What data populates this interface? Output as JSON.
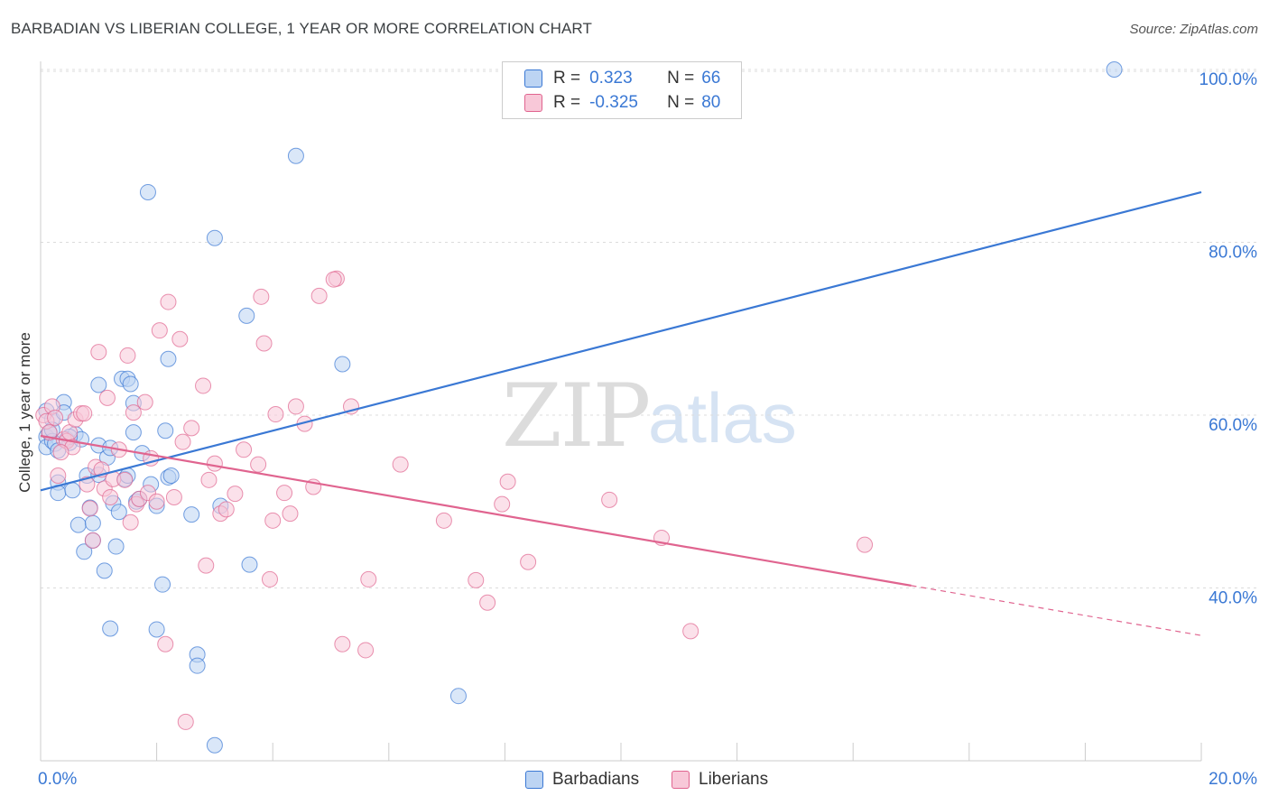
{
  "title": "BARBADIAN VS LIBERIAN COLLEGE, 1 YEAR OR MORE CORRELATION CHART",
  "source": "Source: ZipAtlas.com",
  "watermark": {
    "zip": "ZIP",
    "atlas": "atlas"
  },
  "stats": [
    {
      "r_label": "R =",
      "r_value": "0.323",
      "n_label": "N =",
      "n_value": "66",
      "color": "#3a78d4",
      "fill": "#bcd4f3"
    },
    {
      "r_label": "R =",
      "r_value": "-0.325",
      "n_label": "N =",
      "n_value": "80",
      "color": "#e0648f",
      "fill": "#f8c8d8"
    }
  ],
  "legend": [
    {
      "label": "Barbadians",
      "color": "#3a78d4",
      "fill": "#bcd4f3"
    },
    {
      "label": "Liberians",
      "color": "#e0648f",
      "fill": "#f8c8d8"
    }
  ],
  "chart_data": {
    "type": "scatter",
    "xlabel": "",
    "ylabel": "College, 1 year or more",
    "xlim": [
      0,
      20
    ],
    "ylim": [
      20,
      102
    ],
    "x_tick_labels": [
      "0.0%",
      "20.0%"
    ],
    "y_ticks": [
      40,
      60,
      80,
      100
    ],
    "y_tick_labels": [
      "40.0%",
      "60.0%",
      "80.0%",
      "100.0%"
    ],
    "grid": true,
    "series": [
      {
        "name": "Barbadians",
        "color": "#3a78d4",
        "fill": "#bcd4f3",
        "trend": {
          "x0": 0,
          "y0": 51.3,
          "x1": 20,
          "y1": 85.8,
          "dashed_from": null
        },
        "points": [
          [
            0.1,
            60.5
          ],
          [
            0.1,
            57.5
          ],
          [
            0.1,
            56.3
          ],
          [
            0.15,
            58.0
          ],
          [
            0.2,
            59.5
          ],
          [
            0.2,
            57.0
          ],
          [
            0.25,
            56.7
          ],
          [
            0.3,
            52.2
          ],
          [
            0.3,
            51.0
          ],
          [
            0.4,
            61.5
          ],
          [
            0.4,
            60.3
          ],
          [
            0.45,
            57.2
          ],
          [
            0.5,
            56.8
          ],
          [
            0.55,
            51.3
          ],
          [
            0.6,
            57.8
          ],
          [
            0.65,
            47.3
          ],
          [
            0.7,
            57.2
          ],
          [
            0.75,
            44.2
          ],
          [
            0.8,
            53.0
          ],
          [
            0.85,
            49.3
          ],
          [
            0.9,
            47.5
          ],
          [
            0.9,
            45.5
          ],
          [
            1.0,
            56.5
          ],
          [
            1.0,
            63.5
          ],
          [
            1.1,
            42.0
          ],
          [
            1.15,
            55.1
          ],
          [
            1.2,
            56.2
          ],
          [
            1.2,
            35.3
          ],
          [
            1.25,
            49.8
          ],
          [
            1.3,
            44.8
          ],
          [
            1.35,
            48.8
          ],
          [
            1.4,
            64.2
          ],
          [
            1.45,
            52.6
          ],
          [
            1.5,
            64.2
          ],
          [
            1.5,
            53.0
          ],
          [
            1.55,
            63.6
          ],
          [
            1.6,
            61.4
          ],
          [
            1.6,
            58.0
          ],
          [
            1.65,
            50.0
          ],
          [
            1.7,
            50.3
          ],
          [
            1.75,
            55.6
          ],
          [
            1.85,
            85.8
          ],
          [
            1.9,
            52.0
          ],
          [
            2.0,
            49.5
          ],
          [
            2.0,
            35.2
          ],
          [
            2.1,
            40.4
          ],
          [
            2.15,
            58.2
          ],
          [
            2.2,
            52.8
          ],
          [
            2.2,
            66.5
          ],
          [
            2.25,
            53.0
          ],
          [
            2.6,
            48.5
          ],
          [
            2.7,
            32.3
          ],
          [
            2.7,
            31.0
          ],
          [
            3.0,
            80.5
          ],
          [
            3.0,
            21.8
          ],
          [
            3.1,
            49.5
          ],
          [
            3.55,
            71.5
          ],
          [
            3.6,
            42.7
          ],
          [
            4.4,
            90.0
          ],
          [
            5.2,
            65.9
          ],
          [
            7.2,
            27.5
          ],
          [
            18.5,
            100.0
          ],
          [
            0.2,
            58.3
          ],
          [
            0.5,
            57.5
          ],
          [
            1.0,
            53.1
          ],
          [
            0.3,
            55.9
          ]
        ]
      },
      {
        "name": "Liberians",
        "color": "#e0648f",
        "fill": "#f8c8d8",
        "trend": {
          "x0": 0,
          "y0": 57.6,
          "x1": 20,
          "y1": 34.5,
          "dashed_from": 15.0
        },
        "points": [
          [
            0.05,
            60.0
          ],
          [
            0.1,
            59.3
          ],
          [
            0.15,
            58.0
          ],
          [
            0.2,
            61.0
          ],
          [
            0.25,
            59.7
          ],
          [
            0.3,
            53.0
          ],
          [
            0.4,
            57.2
          ],
          [
            0.45,
            57.0
          ],
          [
            0.5,
            58.0
          ],
          [
            0.55,
            56.3
          ],
          [
            0.6,
            59.5
          ],
          [
            0.7,
            60.2
          ],
          [
            0.75,
            60.2
          ],
          [
            0.8,
            52.0
          ],
          [
            0.85,
            49.2
          ],
          [
            0.9,
            45.5
          ],
          [
            0.95,
            54.0
          ],
          [
            1.0,
            67.3
          ],
          [
            1.05,
            53.7
          ],
          [
            1.1,
            51.5
          ],
          [
            1.15,
            62.0
          ],
          [
            1.2,
            50.5
          ],
          [
            1.25,
            52.6
          ],
          [
            1.35,
            56.0
          ],
          [
            1.45,
            52.5
          ],
          [
            1.5,
            66.9
          ],
          [
            1.55,
            47.6
          ],
          [
            1.6,
            60.3
          ],
          [
            1.65,
            49.7
          ],
          [
            1.7,
            50.3
          ],
          [
            1.8,
            61.5
          ],
          [
            1.85,
            51.0
          ],
          [
            1.9,
            55.0
          ],
          [
            2.0,
            50.0
          ],
          [
            2.05,
            69.8
          ],
          [
            2.15,
            33.5
          ],
          [
            2.2,
            73.1
          ],
          [
            2.3,
            50.5
          ],
          [
            2.4,
            68.8
          ],
          [
            2.45,
            56.9
          ],
          [
            2.5,
            24.5
          ],
          [
            2.6,
            58.5
          ],
          [
            2.8,
            63.4
          ],
          [
            2.85,
            42.6
          ],
          [
            2.9,
            52.5
          ],
          [
            3.0,
            54.4
          ],
          [
            3.1,
            48.6
          ],
          [
            3.2,
            49.1
          ],
          [
            3.35,
            50.9
          ],
          [
            3.5,
            56.0
          ],
          [
            3.75,
            54.3
          ],
          [
            3.8,
            73.7
          ],
          [
            3.85,
            68.3
          ],
          [
            3.95,
            41.0
          ],
          [
            4.0,
            47.8
          ],
          [
            4.05,
            60.1
          ],
          [
            4.2,
            51.0
          ],
          [
            4.3,
            48.6
          ],
          [
            4.4,
            61.0
          ],
          [
            4.55,
            59.0
          ],
          [
            4.7,
            51.7
          ],
          [
            4.8,
            73.8
          ],
          [
            5.1,
            75.8
          ],
          [
            5.2,
            33.5
          ],
          [
            5.35,
            61.0
          ],
          [
            5.6,
            32.8
          ],
          [
            5.65,
            41.0
          ],
          [
            6.2,
            54.3
          ],
          [
            6.95,
            47.8
          ],
          [
            7.5,
            40.9
          ],
          [
            7.7,
            38.3
          ],
          [
            7.95,
            49.7
          ],
          [
            8.05,
            52.3
          ],
          [
            8.4,
            43.0
          ],
          [
            9.8,
            50.2
          ],
          [
            10.7,
            45.8
          ],
          [
            11.2,
            35.0
          ],
          [
            14.2,
            45.0
          ],
          [
            5.05,
            75.7
          ],
          [
            0.35,
            55.7
          ]
        ]
      }
    ]
  }
}
